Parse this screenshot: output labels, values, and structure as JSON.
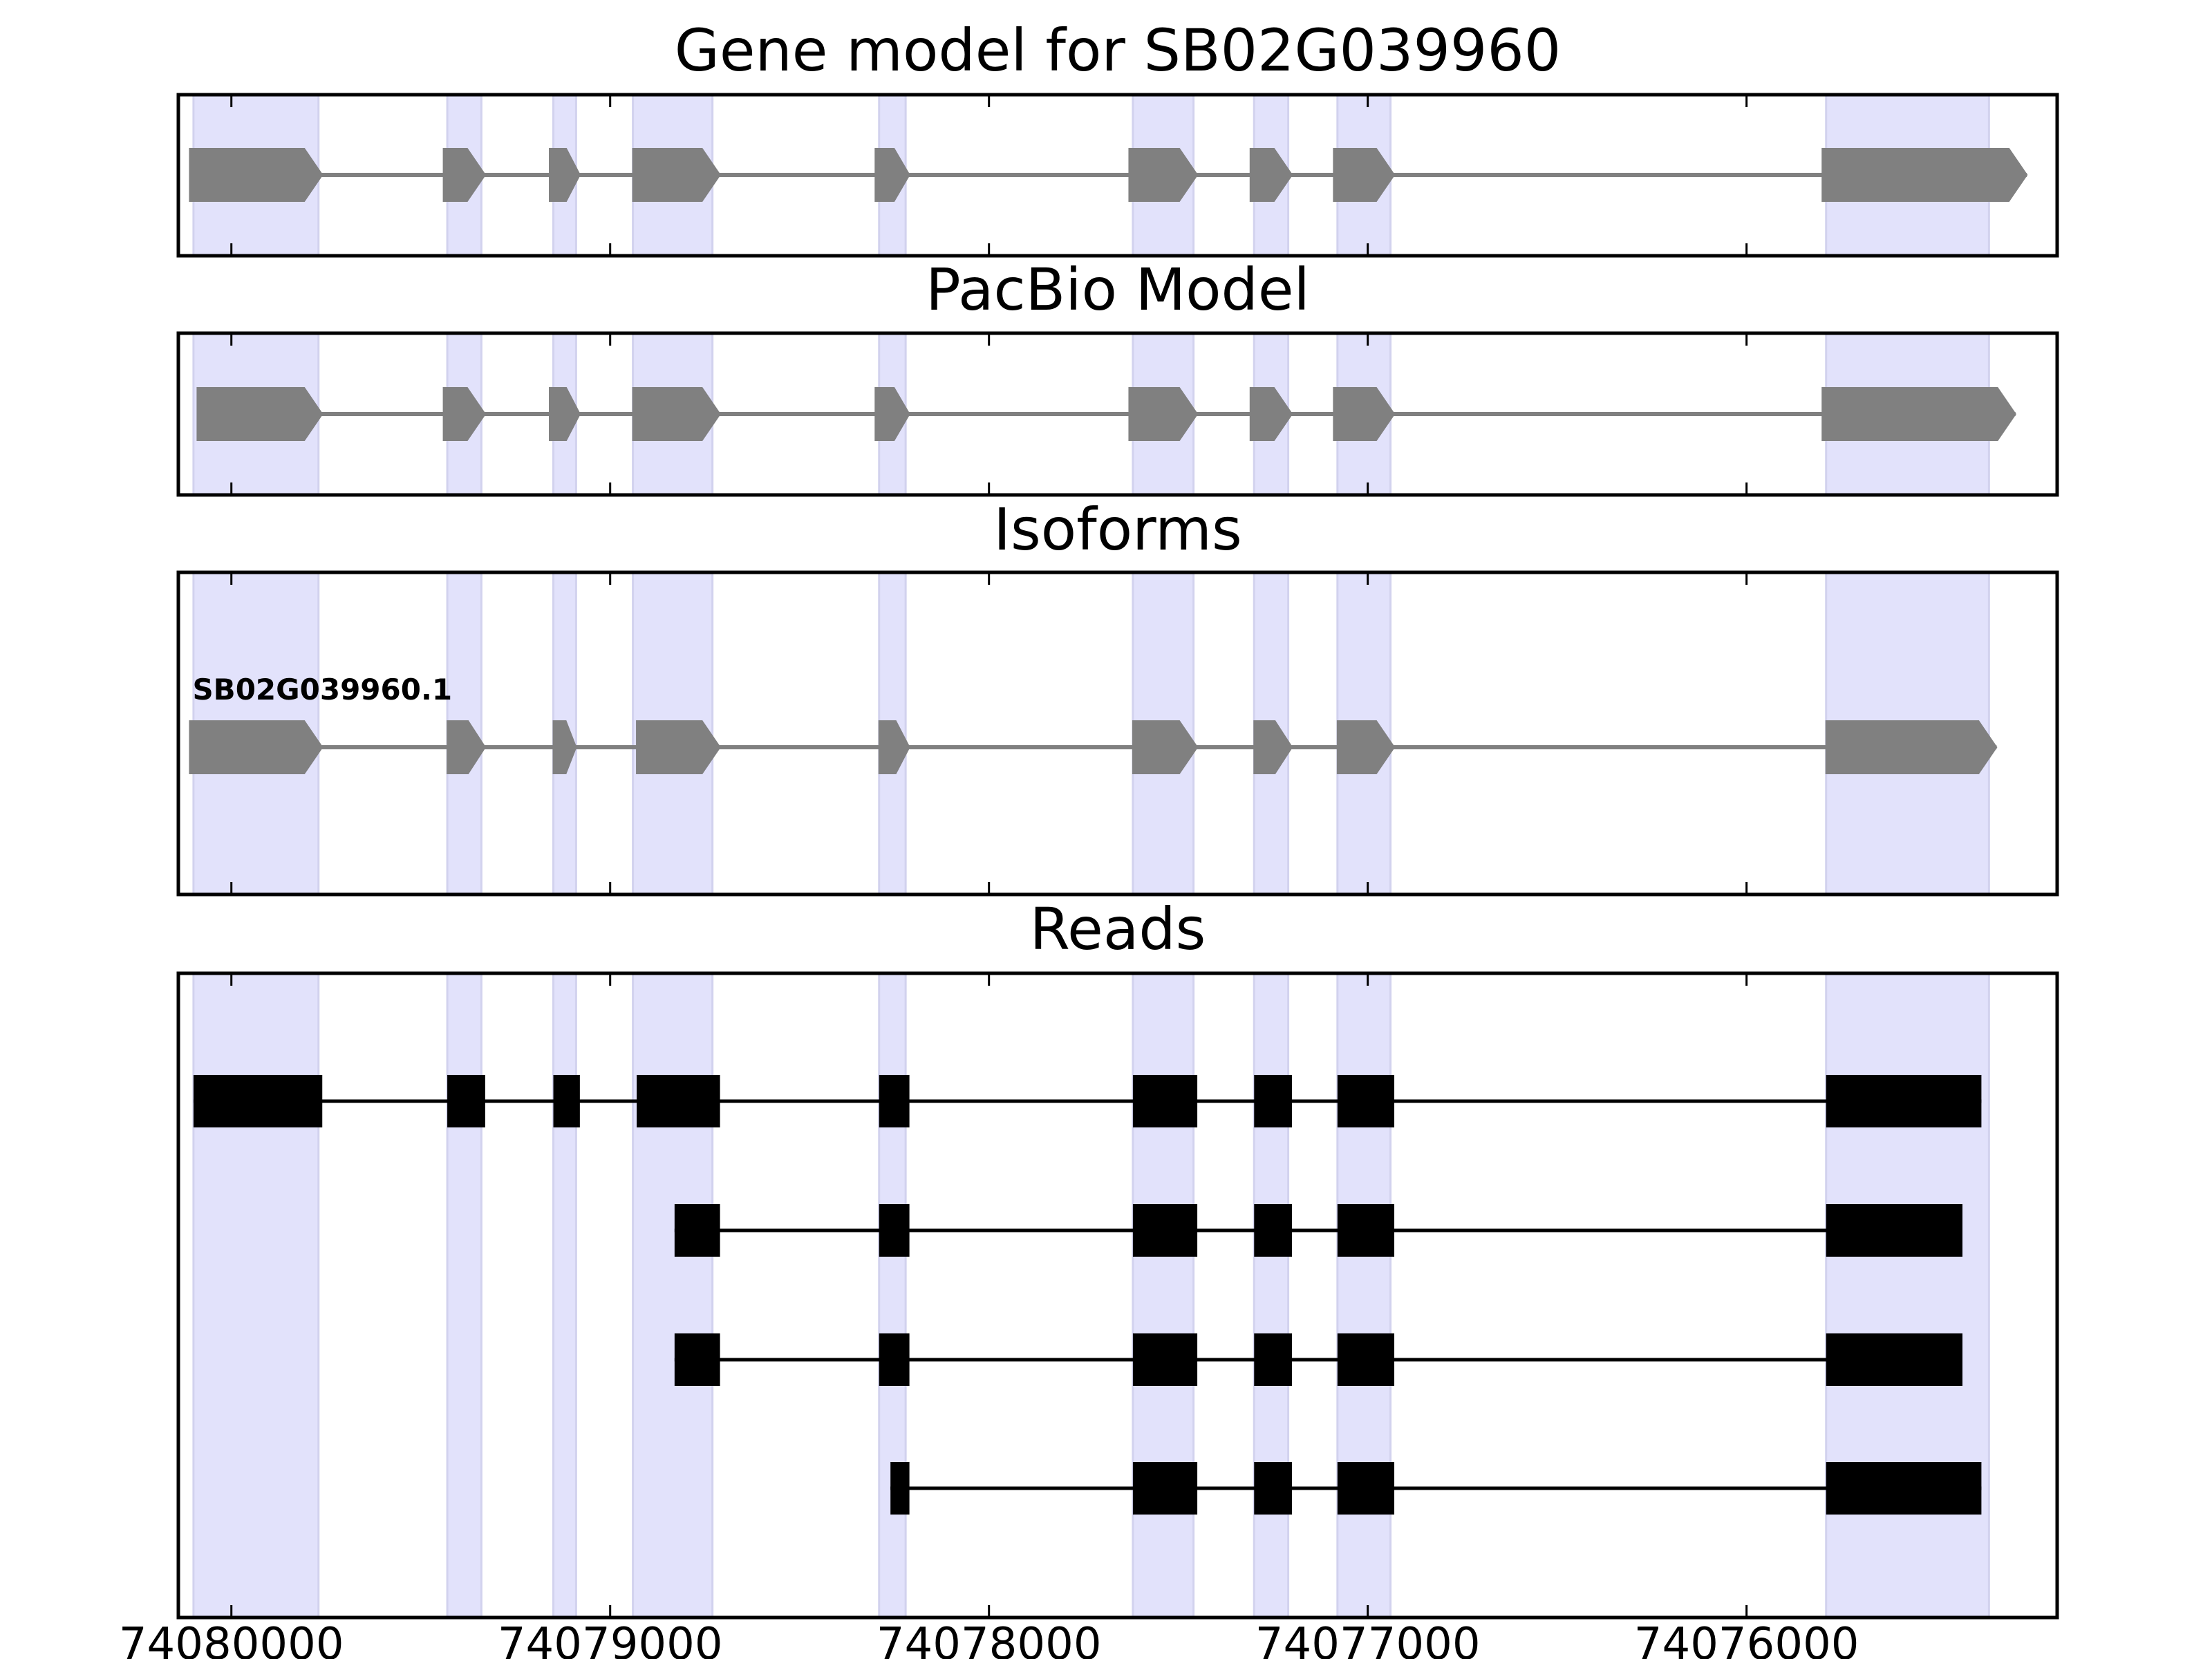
{
  "chart_data": {
    "type": "gene-structure",
    "x_axis": {
      "ticks": [
        74080000,
        74079000,
        74078000,
        74077000,
        74076000
      ],
      "tick_labels": [
        "74080000",
        "74079000",
        "74078000",
        "74077000",
        "74076000"
      ],
      "xlim": [
        74080140,
        74075180
      ],
      "direction": "descending"
    },
    "exon_regions": [
      [
        74080100,
        74079770
      ],
      [
        74079430,
        74079340
      ],
      [
        74079150,
        74079090
      ],
      [
        74078940,
        74078730
      ],
      [
        74078290,
        74078220
      ],
      [
        74077620,
        74077460
      ],
      [
        74077300,
        74077210
      ],
      [
        74077080,
        74076940
      ],
      [
        74075790,
        74075360
      ]
    ],
    "panels": [
      {
        "title": "Gene model for SB02G039960",
        "color": "#808080",
        "style": "arrow",
        "tracks": [
          {
            "label": "",
            "exons": [
              [
                74080110,
                74079760
              ],
              [
                74079440,
                74079330
              ],
              [
                74079160,
                74079080
              ],
              [
                74078940,
                74078710
              ],
              [
                74078300,
                74078210
              ],
              [
                74077630,
                74077450
              ],
              [
                74077310,
                74077200
              ],
              [
                74077090,
                74076930
              ],
              [
                74075800,
                74075260
              ]
            ]
          }
        ]
      },
      {
        "title": "PacBio Model",
        "color": "#808080",
        "style": "arrow",
        "tracks": [
          {
            "label": "",
            "exons": [
              [
                74080090,
                74079760
              ],
              [
                74079440,
                74079330
              ],
              [
                74079160,
                74079080
              ],
              [
                74078940,
                74078710
              ],
              [
                74078300,
                74078210
              ],
              [
                74077630,
                74077450
              ],
              [
                74077310,
                74077200
              ],
              [
                74077090,
                74076930
              ],
              [
                74075800,
                74075290
              ]
            ]
          }
        ]
      },
      {
        "title": "Isoforms",
        "color": "#808080",
        "style": "arrow",
        "tracks": [
          {
            "label": "SB02G039960.1",
            "exons": [
              [
                74080110,
                74079760
              ],
              [
                74079430,
                74079330
              ],
              [
                74079150,
                74079090
              ],
              [
                74078930,
                74078710
              ],
              [
                74078290,
                74078210
              ],
              [
                74077620,
                74077450
              ],
              [
                74077300,
                74077200
              ],
              [
                74077080,
                74076930
              ],
              [
                74075790,
                74075340
              ]
            ]
          }
        ]
      },
      {
        "title": "Reads",
        "color": "#000000",
        "style": "box",
        "tracks": [
          {
            "label": "",
            "exons": [
              [
                74080100,
                74079760
              ],
              [
                74079430,
                74079330
              ],
              [
                74079150,
                74079080
              ],
              [
                74078930,
                74078710
              ],
              [
                74078290,
                74078210
              ],
              [
                74077620,
                74077450
              ],
              [
                74077300,
                74077200
              ],
              [
                74077080,
                74076930
              ],
              [
                74075790,
                74075380
              ]
            ]
          },
          {
            "label": "",
            "exons": [
              [
                74078830,
                74078710
              ],
              [
                74078290,
                74078210
              ],
              [
                74077620,
                74077450
              ],
              [
                74077300,
                74077200
              ],
              [
                74077080,
                74076930
              ],
              [
                74075790,
                74075430
              ]
            ]
          },
          {
            "label": "",
            "exons": [
              [
                74078830,
                74078710
              ],
              [
                74078290,
                74078210
              ],
              [
                74077620,
                74077450
              ],
              [
                74077300,
                74077200
              ],
              [
                74077080,
                74076930
              ],
              [
                74075790,
                74075430
              ]
            ]
          },
          {
            "label": "",
            "exons": [
              [
                74078260,
                74078210
              ],
              [
                74077620,
                74077450
              ],
              [
                74077300,
                74077200
              ],
              [
                74077080,
                74076930
              ],
              [
                74075790,
                74075380
              ]
            ]
          }
        ]
      }
    ]
  }
}
